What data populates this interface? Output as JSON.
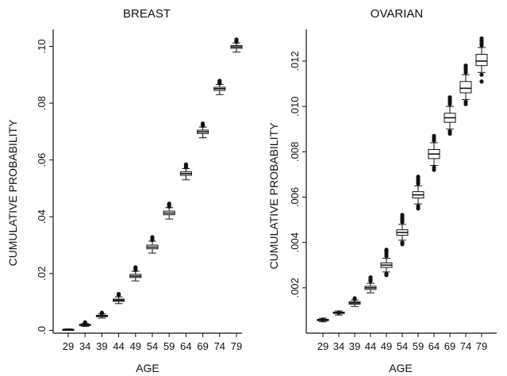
{
  "chart_data": [
    {
      "type": "box",
      "title": "BREAST",
      "xlabel": "AGE",
      "ylabel": "CUMULATIVE PROBABILITY",
      "categories": [
        "29",
        "34",
        "39",
        "44",
        "49",
        "54",
        "59",
        "64",
        "69",
        "74",
        "79"
      ],
      "ylim": [
        -0.001,
        0.106
      ],
      "yticks": [
        0,
        0.02,
        0.04,
        0.06,
        0.08,
        0.1
      ],
      "ytick_labels": [
        ".0",
        ".02",
        ".04",
        ".06",
        ".08",
        ".10"
      ],
      "grid": false,
      "boxes": [
        {
          "age": "29",
          "q1": 0.0002,
          "median": 0.0003,
          "q3": 0.0004,
          "whisker_low": 0.0001,
          "whisker_high": 0.0005,
          "outliers": []
        },
        {
          "age": "34",
          "q1": 0.0017,
          "median": 0.0019,
          "q3": 0.0021,
          "whisker_low": 0.0014,
          "whisker_high": 0.0024,
          "outliers": [
            0.0026,
            0.0028
          ]
        },
        {
          "age": "39",
          "q1": 0.0048,
          "median": 0.005,
          "q3": 0.0053,
          "whisker_low": 0.0043,
          "whisker_high": 0.0058,
          "outliers": [
            0.006,
            0.0062
          ]
        },
        {
          "age": "44",
          "q1": 0.0102,
          "median": 0.0106,
          "q3": 0.011,
          "whisker_low": 0.0094,
          "whisker_high": 0.0118,
          "outliers": [
            0.0124,
            0.0128
          ]
        },
        {
          "age": "49",
          "q1": 0.0186,
          "median": 0.0191,
          "q3": 0.0197,
          "whisker_low": 0.0174,
          "whisker_high": 0.0208,
          "outliers": [
            0.0212,
            0.0218,
            0.0222
          ]
        },
        {
          "age": "54",
          "q1": 0.0287,
          "median": 0.0293,
          "q3": 0.03,
          "whisker_low": 0.0272,
          "whisker_high": 0.0314,
          "outliers": [
            0.0318,
            0.0324,
            0.0328
          ]
        },
        {
          "age": "59",
          "q1": 0.0407,
          "median": 0.0413,
          "q3": 0.042,
          "whisker_low": 0.0392,
          "whisker_high": 0.0432,
          "outliers": [
            0.0436,
            0.0442,
            0.0446
          ]
        },
        {
          "age": "64",
          "q1": 0.0546,
          "median": 0.0552,
          "q3": 0.0558,
          "whisker_low": 0.053,
          "whisker_high": 0.057,
          "outliers": [
            0.0574,
            0.0579,
            0.0584
          ]
        },
        {
          "age": "69",
          "q1": 0.0693,
          "median": 0.0699,
          "q3": 0.0705,
          "whisker_low": 0.0678,
          "whisker_high": 0.0716,
          "outliers": [
            0.072,
            0.0725,
            0.0728
          ]
        },
        {
          "age": "74",
          "q1": 0.0845,
          "median": 0.0851,
          "q3": 0.0856,
          "whisker_low": 0.083,
          "whisker_high": 0.0866,
          "outliers": [
            0.087,
            0.0875,
            0.0879
          ]
        },
        {
          "age": "79",
          "q1": 0.0993,
          "median": 0.0998,
          "q3": 0.1003,
          "whisker_low": 0.098,
          "whisker_high": 0.1012,
          "outliers": [
            0.1016,
            0.102,
            0.1024
          ]
        }
      ]
    },
    {
      "type": "box",
      "title": "OVARIAN",
      "xlabel": "AGE",
      "ylabel": "CUMULATIVE PROBABILITY",
      "categories": [
        "29",
        "34",
        "39",
        "44",
        "49",
        "54",
        "59",
        "64",
        "69",
        "74",
        "79"
      ],
      "ylim": [
        0,
        0.0134
      ],
      "yticks": [
        0.002,
        0.004,
        0.006,
        0.008,
        0.01,
        0.012
      ],
      "ytick_labels": [
        ".002",
        ".004",
        ".006",
        ".008",
        ".010",
        ".012"
      ],
      "grid": false,
      "boxes": [
        {
          "age": "29",
          "q1": 0.00055,
          "median": 0.00058,
          "q3": 0.00061,
          "whisker_low": 0.0005,
          "whisker_high": 0.00066,
          "outliers": [
            0.0006
          ]
        },
        {
          "age": "34",
          "q1": 0.00087,
          "median": 0.0009,
          "q3": 0.00093,
          "whisker_low": 0.0008,
          "whisker_high": 0.00098,
          "outliers": [
            0.0009
          ]
        },
        {
          "age": "39",
          "q1": 0.00128,
          "median": 0.00133,
          "q3": 0.00138,
          "whisker_low": 0.00118,
          "whisker_high": 0.00146,
          "outliers": [
            0.0015,
            0.00154
          ]
        },
        {
          "age": "44",
          "q1": 0.00193,
          "median": 0.002,
          "q3": 0.00207,
          "whisker_low": 0.00178,
          "whisker_high": 0.0022,
          "outliers": [
            0.0023,
            0.00238,
            0.00246
          ]
        },
        {
          "age": "49",
          "q1": 0.0029,
          "median": 0.003,
          "q3": 0.0031,
          "whisker_low": 0.0027,
          "whisker_high": 0.0033,
          "outliers": [
            0.0034,
            0.0035,
            0.0036,
            0.00368,
            0.00262,
            0.00256
          ]
        },
        {
          "age": "54",
          "q1": 0.00432,
          "median": 0.00444,
          "q3": 0.00456,
          "whisker_low": 0.0041,
          "whisker_high": 0.0048,
          "outliers": [
            0.0049,
            0.00498,
            0.00506,
            0.00514,
            0.00522,
            0.004,
            0.00392
          ]
        },
        {
          "age": "59",
          "q1": 0.00596,
          "median": 0.0061,
          "q3": 0.00624,
          "whisker_low": 0.0057,
          "whisker_high": 0.0065,
          "outliers": [
            0.0066,
            0.0067,
            0.0068,
            0.0069,
            0.0056,
            0.0055
          ]
        },
        {
          "age": "64",
          "q1": 0.0077,
          "median": 0.0079,
          "q3": 0.0081,
          "whisker_low": 0.0074,
          "whisker_high": 0.0084,
          "outliers": [
            0.0085,
            0.0086,
            0.0087,
            0.0073,
            0.0072
          ]
        },
        {
          "age": "69",
          "q1": 0.0093,
          "median": 0.0095,
          "q3": 0.0097,
          "whisker_low": 0.009,
          "whisker_high": 0.01,
          "outliers": [
            0.0101,
            0.0102,
            0.0103,
            0.0104,
            0.0089,
            0.0088
          ]
        },
        {
          "age": "74",
          "q1": 0.0106,
          "median": 0.0108,
          "q3": 0.0111,
          "whisker_low": 0.0103,
          "whisker_high": 0.0114,
          "outliers": [
            0.0115,
            0.0116,
            0.0117,
            0.0118,
            0.0102,
            0.0101
          ]
        },
        {
          "age": "79",
          "q1": 0.0118,
          "median": 0.012,
          "q3": 0.0123,
          "whisker_low": 0.0115,
          "whisker_high": 0.0126,
          "outliers": [
            0.0127,
            0.0128,
            0.0129,
            0.013,
            0.0114,
            0.0111
          ]
        }
      ]
    }
  ]
}
